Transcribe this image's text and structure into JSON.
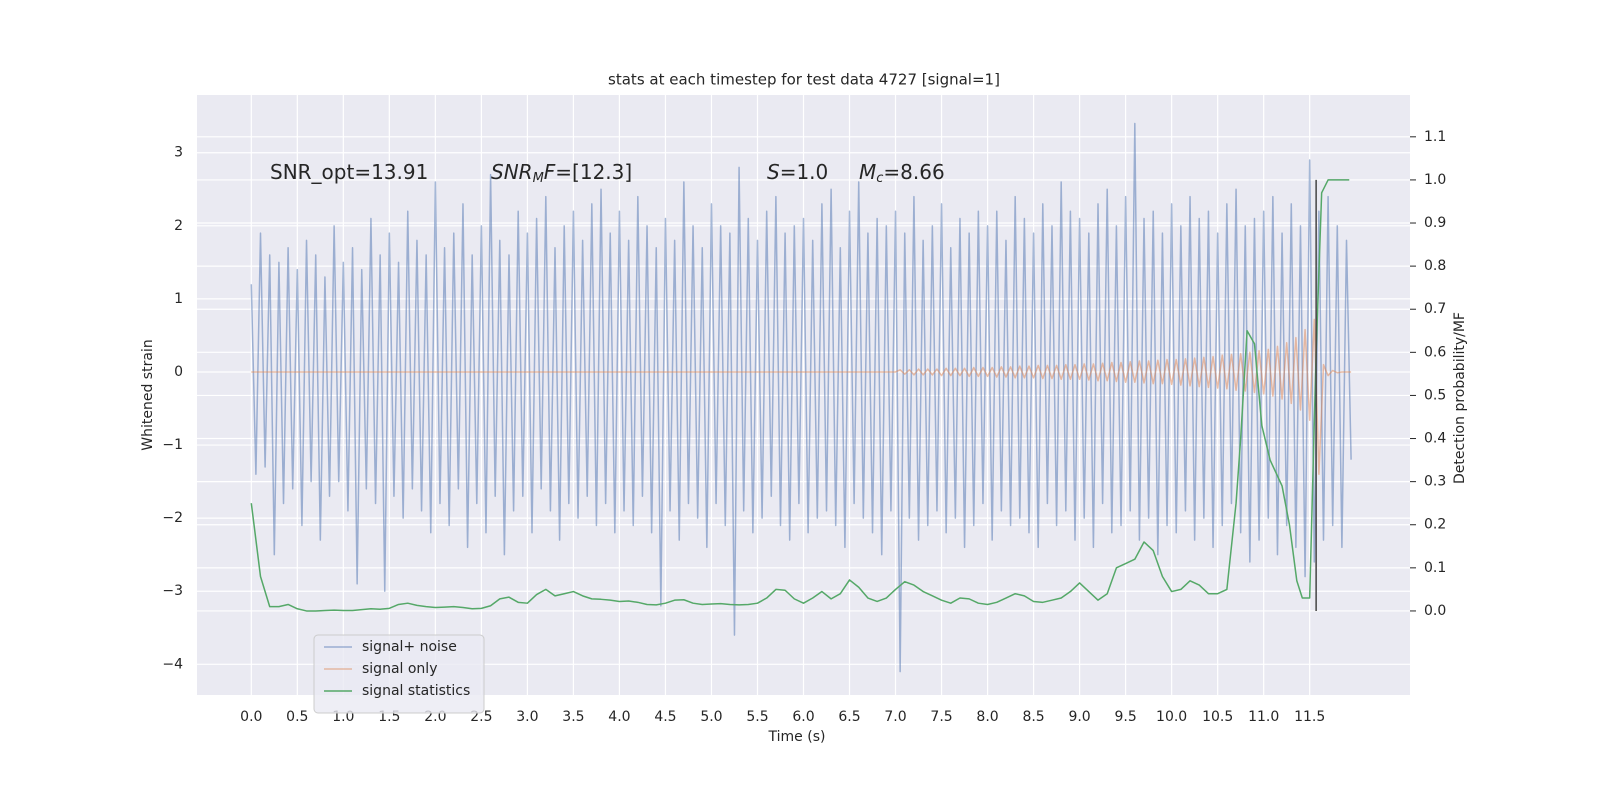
{
  "chart_data": {
    "type": "line",
    "title": "stats at each timestep for test data 4727 [signal=1]",
    "xlabel": "Time (s)",
    "ylabel": "Whitened strain",
    "y2label": "Detection probability/MF",
    "annotations": [
      [
        {
          "text": "SNR_opt=13.91",
          "style": "normal"
        }
      ],
      [
        {
          "text": "SNR",
          "style": "italic"
        },
        {
          "text": "M",
          "style": "sub"
        },
        {
          "text": "F",
          "style": "italic"
        },
        {
          "text": "=[12.3]",
          "style": "normal"
        }
      ],
      [
        {
          "text": "S",
          "style": "italic"
        },
        {
          "text": "=1.0",
          "style": "normal"
        }
      ],
      [
        {
          "text": "M",
          "style": "italic"
        },
        {
          "text": "c",
          "style": "sub"
        },
        {
          "text": "=8.66",
          "style": "normal"
        }
      ]
    ],
    "xlim": [
      -0.59,
      12.59
    ],
    "ylim": [
      -4.42,
      3.79
    ],
    "y2lim": [
      -0.195,
      1.197
    ],
    "xticks": [
      {
        "value": 0,
        "label": "0.0"
      },
      0.5,
      {
        "value": 1,
        "label": "1.0"
      },
      1.5,
      {
        "value": 2,
        "label": "2.0"
      },
      2.5,
      {
        "value": 3,
        "label": "3.0"
      },
      3.5,
      {
        "value": 4,
        "label": "4.0"
      },
      4.5,
      {
        "value": 5,
        "label": "5.0"
      },
      5.5,
      {
        "value": 6,
        "label": "6.0"
      },
      6.5,
      {
        "value": 7,
        "label": "7.0"
      },
      7.5,
      {
        "value": 8,
        "label": "8.0"
      },
      8.5,
      {
        "value": 9,
        "label": "9.0"
      },
      9.5,
      {
        "value": 10,
        "label": "10.0"
      },
      10.5,
      {
        "value": 11,
        "label": "11.0"
      },
      11.5
    ],
    "yticks": [
      {
        "value": -4,
        "label": "−4"
      },
      {
        "value": -3,
        "label": "−3"
      },
      {
        "value": -2,
        "label": "−2"
      },
      {
        "value": -1,
        "label": "−1"
      },
      0,
      1,
      2,
      3
    ],
    "y2ticks": [
      {
        "value": 0,
        "label": "0.0"
      },
      0.1,
      0.2,
      0.3,
      0.4,
      0.5,
      0.6,
      0.7,
      0.8,
      0.9,
      {
        "value": 1,
        "label": "1.0"
      },
      1.1
    ],
    "grid": true,
    "legend": "lower left",
    "vline": {
      "x": 11.57,
      "ymin": 0,
      "ymax": 1,
      "color": "#444444",
      "axis": "y2"
    },
    "series": [
      {
        "name": "signal+ noise",
        "color": "#4c72b0",
        "alpha": 0.5,
        "axis": "y",
        "x": [
          0,
          0.05,
          0.1,
          0.15,
          0.2,
          0.25,
          0.3,
          0.35,
          0.4,
          0.45,
          0.5,
          0.55,
          0.6,
          0.65,
          0.7,
          0.75,
          0.8,
          0.85,
          0.9,
          0.95,
          1,
          1.05,
          1.1,
          1.15,
          1.2,
          1.25,
          1.3,
          1.35,
          1.4,
          1.45,
          1.5,
          1.55,
          1.6,
          1.65,
          1.7,
          1.75,
          1.8,
          1.85,
          1.9,
          1.95,
          2,
          2.05,
          2.1,
          2.15,
          2.2,
          2.25,
          2.3,
          2.35,
          2.4,
          2.45,
          2.5,
          2.55,
          2.6,
          2.65,
          2.7,
          2.75,
          2.8,
          2.85,
          2.9,
          2.95,
          3,
          3.05,
          3.1,
          3.15,
          3.2,
          3.25,
          3.3,
          3.35,
          3.4,
          3.45,
          3.5,
          3.55,
          3.6,
          3.65,
          3.7,
          3.75,
          3.8,
          3.85,
          3.9,
          3.95,
          4,
          4.05,
          4.1,
          4.15,
          4.2,
          4.25,
          4.3,
          4.35,
          4.4,
          4.45,
          4.5,
          4.55,
          4.6,
          4.65,
          4.7,
          4.75,
          4.8,
          4.85,
          4.9,
          4.95,
          5,
          5.05,
          5.1,
          5.15,
          5.2,
          5.25,
          5.3,
          5.35,
          5.4,
          5.45,
          5.5,
          5.55,
          5.6,
          5.65,
          5.7,
          5.75,
          5.8,
          5.85,
          5.9,
          5.95,
          6,
          6.05,
          6.1,
          6.15,
          6.2,
          6.25,
          6.3,
          6.35,
          6.4,
          6.45,
          6.5,
          6.55,
          6.6,
          6.65,
          6.7,
          6.75,
          6.8,
          6.85,
          6.9,
          6.95,
          7,
          7.05,
          7.1,
          7.15,
          7.2,
          7.25,
          7.3,
          7.35,
          7.4,
          7.45,
          7.5,
          7.55,
          7.6,
          7.65,
          7.7,
          7.75,
          7.8,
          7.85,
          7.9,
          7.95,
          8,
          8.05,
          8.1,
          8.15,
          8.2,
          8.25,
          8.3,
          8.35,
          8.4,
          8.45,
          8.5,
          8.55,
          8.6,
          8.65,
          8.7,
          8.75,
          8.8,
          8.85,
          8.9,
          8.95,
          9,
          9.05,
          9.1,
          9.15,
          9.2,
          9.25,
          9.3,
          9.35,
          9.4,
          9.45,
          9.5,
          9.55,
          9.6,
          9.65,
          9.7,
          9.75,
          9.8,
          9.85,
          9.9,
          9.95,
          10,
          10.05,
          10.1,
          10.15,
          10.2,
          10.25,
          10.3,
          10.35,
          10.4,
          10.45,
          10.5,
          10.55,
          10.6,
          10.65,
          10.7,
          10.75,
          10.8,
          10.85,
          10.9,
          10.95,
          11,
          11.05,
          11.1,
          11.15,
          11.2,
          11.25,
          11.3,
          11.35,
          11.4,
          11.45,
          11.5,
          11.55,
          11.6,
          11.65,
          11.7,
          11.75,
          11.8,
          11.85,
          11.9,
          11.95
        ],
        "values": [
          1.2,
          -1.4,
          1.9,
          -1.3,
          1.6,
          -2.5,
          1.5,
          -1.8,
          1.7,
          -1.6,
          1.4,
          -2.1,
          1.8,
          -1.5,
          1.6,
          -2.3,
          1.3,
          -1.7,
          2.0,
          -1.5,
          1.5,
          -1.9,
          1.7,
          -2.9,
          1.4,
          -1.6,
          2.1,
          -1.8,
          1.6,
          -3.0,
          1.9,
          -1.7,
          1.5,
          -2.0,
          2.2,
          -1.6,
          1.8,
          -1.9,
          1.6,
          -2.2,
          2.6,
          -1.8,
          1.7,
          -2.1,
          1.9,
          -1.6,
          2.3,
          -2.4,
          1.6,
          -1.8,
          2.0,
          -2.2,
          2.7,
          -1.7,
          1.8,
          -2.5,
          1.6,
          -1.9,
          2.2,
          -1.7,
          1.9,
          -2.2,
          2.1,
          -1.6,
          2.4,
          -1.9,
          1.7,
          -2.3,
          2.0,
          -1.8,
          2.2,
          -2.0,
          1.8,
          -1.7,
          2.3,
          -2.1,
          2.5,
          -1.8,
          1.9,
          -2.2,
          2.2,
          -1.9,
          1.8,
          -2.1,
          2.4,
          -1.7,
          2.0,
          -2.2,
          1.7,
          -3.2,
          2.1,
          -1.9,
          1.8,
          -2.3,
          2.6,
          -1.8,
          2.0,
          -2.0,
          1.7,
          -2.4,
          2.3,
          -1.8,
          2.0,
          -2.1,
          1.9,
          -3.6,
          2.8,
          -1.9,
          2.1,
          -2.2,
          1.8,
          -2.0,
          2.2,
          -1.7,
          2.4,
          -2.1,
          1.9,
          -2.3,
          2.0,
          -1.8,
          2.1,
          -2.2,
          1.8,
          -2.0,
          2.3,
          -1.9,
          2.5,
          -2.1,
          1.7,
          -2.4,
          2.2,
          -1.8,
          2.6,
          -2.0,
          1.9,
          -2.2,
          2.1,
          -2.5,
          2.0,
          -1.9,
          2.2,
          -4.1,
          1.9,
          -2.0,
          2.4,
          -2.3,
          1.8,
          -2.1,
          2.0,
          -1.9,
          2.3,
          -2.2,
          1.7,
          -2.0,
          2.1,
          -2.4,
          1.9,
          -2.1,
          2.2,
          -1.8,
          2.0,
          -2.3,
          2.2,
          -1.9,
          1.8,
          -2.1,
          2.4,
          -2.0,
          2.1,
          -2.2,
          1.9,
          -2.4,
          2.3,
          -1.8,
          2.0,
          -2.1,
          2.6,
          -1.9,
          2.2,
          -2.3,
          2.1,
          -2.0,
          1.9,
          -2.4,
          2.3,
          -1.8,
          2.5,
          -2.2,
          2.0,
          -2.1,
          2.4,
          -1.9,
          3.4,
          -2.3,
          2.1,
          -2.0,
          2.2,
          -2.5,
          1.9,
          -2.1,
          2.3,
          -2.2,
          2.0,
          -1.9,
          2.4,
          -2.3,
          2.1,
          -2.0,
          2.2,
          -2.4,
          1.9,
          -2.1,
          2.3,
          -1.8,
          2.5,
          -2.2,
          2.0,
          -2.6,
          2.1,
          -2.3,
          2.2,
          -2.0,
          2.4,
          -2.5,
          1.9,
          -2.1,
          2.3,
          -2.4,
          2.0,
          -2.8,
          2.9,
          -2.6,
          2.2,
          -2.3,
          2.4,
          -2.1,
          2.0,
          -2.4,
          1.8,
          -1.2
        ]
      },
      {
        "name": "signal only",
        "color": "#dd8452",
        "alpha": 0.5,
        "axis": "y",
        "x": [
          0,
          0.5,
          1,
          1.5,
          2,
          2.5,
          3,
          3.5,
          4,
          4.5,
          5,
          5.5,
          6,
          6.5,
          7,
          7.05,
          7.1,
          7.15,
          7.2,
          7.25,
          7.3,
          7.35,
          7.4,
          7.45,
          7.5,
          7.55,
          7.6,
          7.65,
          7.7,
          7.75,
          7.8,
          7.85,
          7.9,
          7.95,
          8,
          8.05,
          8.1,
          8.15,
          8.2,
          8.25,
          8.3,
          8.35,
          8.4,
          8.45,
          8.5,
          8.55,
          8.6,
          8.65,
          8.7,
          8.75,
          8.8,
          8.85,
          8.9,
          8.95,
          9,
          9.05,
          9.1,
          9.15,
          9.2,
          9.25,
          9.3,
          9.35,
          9.4,
          9.45,
          9.5,
          9.55,
          9.6,
          9.65,
          9.7,
          9.75,
          9.8,
          9.85,
          9.9,
          9.95,
          10,
          10.05,
          10.1,
          10.15,
          10.2,
          10.25,
          10.3,
          10.35,
          10.4,
          10.45,
          10.5,
          10.55,
          10.6,
          10.65,
          10.7,
          10.75,
          10.8,
          10.85,
          10.9,
          10.95,
          11,
          11.05,
          11.1,
          11.15,
          11.2,
          11.25,
          11.3,
          11.35,
          11.4,
          11.45,
          11.5,
          11.55,
          11.6,
          11.65,
          11.7,
          11.75,
          11.8,
          11.85,
          11.9,
          11.95
        ],
        "values": [
          0,
          0,
          0,
          0,
          0,
          0,
          0,
          0,
          0,
          0,
          0,
          0,
          0,
          0,
          0,
          0.03,
          -0.03,
          0.03,
          -0.04,
          0.04,
          -0.04,
          0.04,
          -0.04,
          0.04,
          -0.05,
          0.05,
          -0.05,
          0.05,
          -0.05,
          0.05,
          -0.06,
          0.06,
          -0.06,
          0.06,
          -0.06,
          0.06,
          -0.07,
          0.07,
          -0.07,
          0.07,
          -0.08,
          0.08,
          -0.08,
          0.08,
          -0.08,
          0.09,
          -0.09,
          0.09,
          -0.09,
          0.09,
          -0.1,
          0.1,
          -0.1,
          0.1,
          -0.1,
          0.11,
          -0.11,
          0.11,
          -0.12,
          0.12,
          -0.12,
          0.13,
          -0.13,
          0.13,
          -0.14,
          0.14,
          -0.14,
          0.15,
          -0.15,
          0.15,
          -0.16,
          0.16,
          -0.16,
          0.17,
          -0.17,
          0.17,
          -0.18,
          0.18,
          -0.19,
          0.19,
          -0.2,
          0.2,
          -0.21,
          0.21,
          -0.22,
          0.23,
          -0.23,
          0.24,
          -0.25,
          0.25,
          -0.26,
          0.27,
          -0.28,
          0.29,
          -0.3,
          0.31,
          -0.33,
          0.35,
          -0.37,
          0.4,
          -0.43,
          0.47,
          -0.52,
          0.58,
          -0.66,
          0.72,
          -1.4,
          0.1,
          -0.05,
          0.02,
          -0.01,
          0,
          0,
          0
        ]
      },
      {
        "name": "signal statistics",
        "color": "#55a868",
        "alpha": 1,
        "axis": "y2",
        "x": [
          0,
          0.1,
          0.2,
          0.3,
          0.4,
          0.5,
          0.6,
          0.7,
          0.8,
          0.9,
          1,
          1.1,
          1.2,
          1.3,
          1.4,
          1.5,
          1.6,
          1.7,
          1.8,
          1.9,
          2,
          2.1,
          2.2,
          2.3,
          2.4,
          2.5,
          2.6,
          2.7,
          2.8,
          2.9,
          3,
          3.1,
          3.2,
          3.3,
          3.4,
          3.5,
          3.6,
          3.7,
          3.8,
          3.9,
          4,
          4.1,
          4.2,
          4.3,
          4.4,
          4.5,
          4.6,
          4.7,
          4.8,
          4.9,
          5,
          5.1,
          5.2,
          5.3,
          5.4,
          5.5,
          5.6,
          5.7,
          5.8,
          5.9,
          6,
          6.1,
          6.2,
          6.3,
          6.4,
          6.5,
          6.6,
          6.7,
          6.8,
          6.9,
          7,
          7.1,
          7.2,
          7.3,
          7.4,
          7.5,
          7.6,
          7.7,
          7.8,
          7.9,
          8,
          8.1,
          8.2,
          8.3,
          8.4,
          8.5,
          8.6,
          8.7,
          8.8,
          8.9,
          9,
          9.1,
          9.2,
          9.3,
          9.4,
          9.5,
          9.6,
          9.7,
          9.8,
          9.9,
          10,
          10.1,
          10.2,
          10.3,
          10.4,
          10.5,
          10.6,
          10.7,
          10.75,
          10.82,
          10.9,
          10.98,
          11.07,
          11.2,
          11.28,
          11.36,
          11.42,
          11.5,
          11.57,
          11.63,
          11.7,
          11.8,
          11.93
        ],
        "values": [
          0.25,
          0.08,
          0.01,
          0.01,
          0.015,
          0.005,
          0,
          0,
          0.001,
          0.002,
          0.001,
          0.001,
          0.003,
          0.005,
          0.004,
          0.006,
          0.015,
          0.018,
          0.013,
          0.01,
          0.008,
          0.009,
          0.01,
          0.008,
          0.005,
          0.006,
          0.012,
          0.028,
          0.032,
          0.02,
          0.018,
          0.038,
          0.05,
          0.035,
          0.04,
          0.045,
          0.035,
          0.028,
          0.027,
          0.025,
          0.022,
          0.023,
          0.02,
          0.015,
          0.014,
          0.018,
          0.025,
          0.026,
          0.018,
          0.015,
          0.016,
          0.017,
          0.015,
          0.014,
          0.015,
          0.018,
          0.03,
          0.05,
          0.048,
          0.028,
          0.018,
          0.03,
          0.045,
          0.028,
          0.04,
          0.072,
          0.055,
          0.03,
          0.022,
          0.03,
          0.05,
          0.068,
          0.06,
          0.045,
          0.035,
          0.025,
          0.018,
          0.03,
          0.028,
          0.018,
          0.015,
          0.02,
          0.03,
          0.04,
          0.035,
          0.022,
          0.02,
          0.025,
          0.03,
          0.045,
          0.065,
          0.045,
          0.025,
          0.04,
          0.1,
          0.11,
          0.12,
          0.16,
          0.14,
          0.08,
          0.045,
          0.05,
          0.07,
          0.06,
          0.04,
          0.04,
          0.05,
          0.25,
          0.4,
          0.65,
          0.62,
          0.43,
          0.35,
          0.29,
          0.2,
          0.07,
          0.03,
          0.03,
          0.6,
          0.97,
          1,
          1,
          1
        ]
      }
    ]
  }
}
